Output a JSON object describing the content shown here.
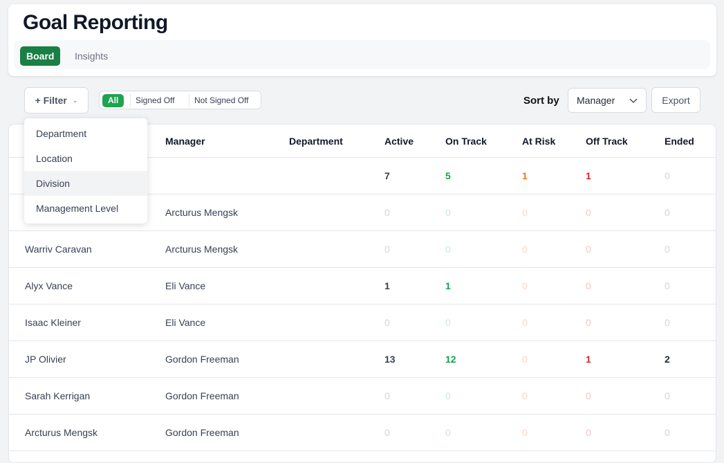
{
  "header": {
    "title": "Goal Reporting",
    "tabs": [
      {
        "label": "Board",
        "active": true
      },
      {
        "label": "Insights",
        "active": false
      }
    ]
  },
  "toolbar": {
    "filter_label": "+ Filter",
    "segments": [
      "All",
      "Signed Off",
      "Not Signed Off"
    ],
    "sort_label": "Sort by",
    "sort_value": "Manager",
    "export_label": "Export"
  },
  "filter_menu": {
    "items": [
      "Department",
      "Location",
      "Division",
      "Management Level"
    ],
    "highlighted": "Division"
  },
  "colors": {
    "accent": "#1a7f45",
    "on_track": "#16a34a",
    "at_risk": "#f97316",
    "off_track": "#dc2626"
  },
  "table": {
    "columns": [
      "",
      "Manager",
      "Department",
      "Active",
      "On Track",
      "At Risk",
      "Off Track",
      "Ended"
    ],
    "rows": [
      [
        "",
        "",
        "",
        "7",
        "5",
        "1",
        "1",
        "0"
      ],
      [
        "",
        "Arcturus Mengsk",
        "",
        "0",
        "0",
        "0",
        "0",
        "0"
      ],
      [
        "Warriv Caravan",
        "Arcturus Mengsk",
        "",
        "0",
        "0",
        "0",
        "0",
        "0"
      ],
      [
        "Alyx Vance",
        "Eli Vance",
        "",
        "1",
        "1",
        "0",
        "0",
        "0"
      ],
      [
        "Isaac Kleiner",
        "Eli Vance",
        "",
        "0",
        "0",
        "0",
        "0",
        "0"
      ],
      [
        "JP Olivier",
        "Gordon Freeman",
        "",
        "13",
        "12",
        "0",
        "1",
        "2"
      ],
      [
        "Sarah Kerrigan",
        "Gordon Freeman",
        "",
        "0",
        "0",
        "0",
        "0",
        "0"
      ],
      [
        "Arcturus Mengsk",
        "Gordon Freeman",
        "",
        "0",
        "0",
        "0",
        "0",
        "0"
      ]
    ]
  }
}
